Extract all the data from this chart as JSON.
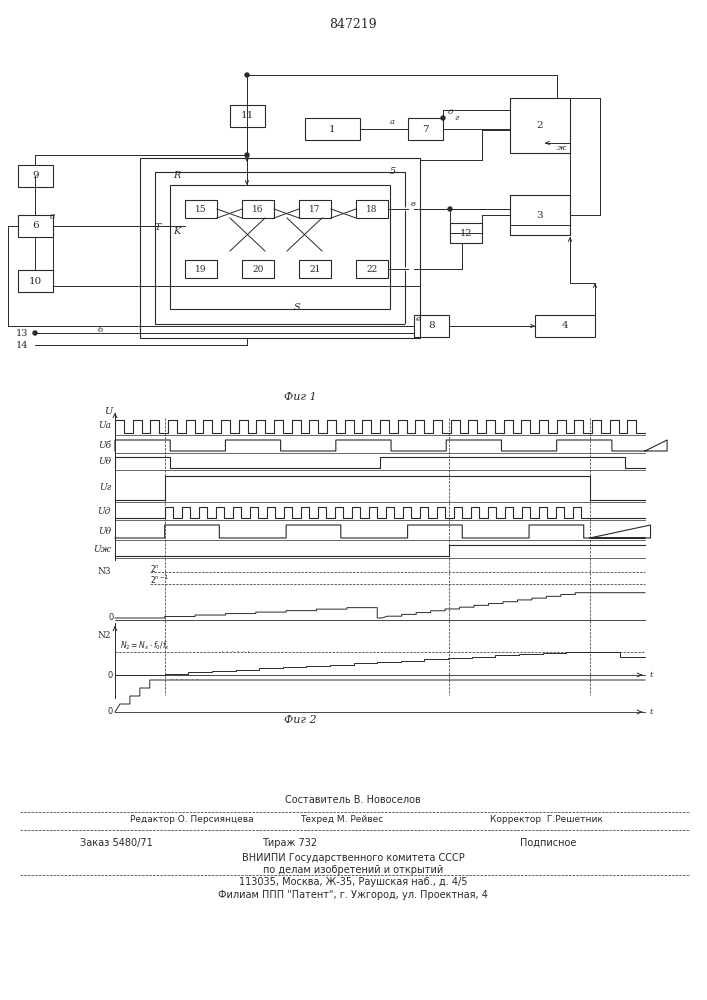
{
  "title": "847219",
  "bg_color": "#ffffff",
  "line_color": "#2a2a2a",
  "box_color": "#ffffff",
  "footer_composer": "Составитель В. Новоселов",
  "footer_editor": "Редактор О. Персиянцева",
  "footer_techn": "Техред М. Рейвес",
  "footer_corr": "Корректор  Г.Решетник",
  "footer_order": "Заказ 5480/71",
  "footer_copies": "Тираж 732",
  "footer_subsc": "Подписное",
  "footer_org": "ВНИИПИ Государственного комитета СССР",
  "footer_dept": "по делам изобретений и открытий",
  "footer_addr": "113035, Москва, Ж-35, Раушская наб., д. 4/5",
  "footer_branch": "Филиам ППП \"Патент\", г. Ужгород, ул. Проектная, 4"
}
